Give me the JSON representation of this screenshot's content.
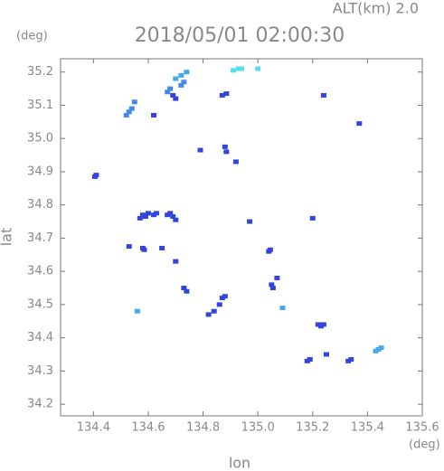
{
  "chart_data": {
    "type": "scatter",
    "title": "2018/05/01 02:00:30",
    "subtitle": "ALT(km)  2.0",
    "x_label": "lon",
    "y_label": "lat",
    "x_unit": "(deg)",
    "y_unit": "(deg)",
    "xlim": [
      134.28,
      135.6
    ],
    "ylim": [
      34.165,
      35.24
    ],
    "xticks": [
      134.4,
      134.6,
      134.8,
      {
        "value": 135,
        "label": "135.0"
      },
      135.2,
      135.4,
      135.6
    ],
    "yticks": [
      34.2,
      34.3,
      34.4,
      34.5,
      34.6,
      34.7,
      34.8,
      34.9,
      {
        "value": 35,
        "label": "35.0"
      },
      35.1,
      35.2
    ],
    "series": [
      {
        "color": "#3344dd",
        "x": [
          134.405,
          134.41,
          134.57,
          134.58,
          134.6,
          134.62,
          134.63,
          134.59,
          134.67,
          134.69,
          134.7,
          134.68,
          134.53,
          134.58,
          134.585,
          134.65,
          134.7,
          134.73,
          134.74,
          134.82,
          134.84,
          134.86,
          134.87,
          134.88,
          134.79,
          134.88,
          134.885,
          134.92,
          134.87,
          134.885,
          134.97,
          135.04,
          135.045,
          135.07,
          135.05,
          135.055,
          135.2,
          135.22,
          135.23,
          135.24,
          135.18,
          135.19,
          135.25,
          135.33,
          135.34,
          135.24,
          135.37,
          134.62,
          134.69,
          134.7
        ],
        "y": [
          34.885,
          34.89,
          34.76,
          34.77,
          34.775,
          34.77,
          34.775,
          34.765,
          34.77,
          34.765,
          34.755,
          34.775,
          34.675,
          34.67,
          34.665,
          34.67,
          34.63,
          34.55,
          34.54,
          34.47,
          34.48,
          34.5,
          34.52,
          34.525,
          34.965,
          34.975,
          34.96,
          34.93,
          35.13,
          35.135,
          34.75,
          34.66,
          34.665,
          34.58,
          34.56,
          34.55,
          34.76,
          34.44,
          34.435,
          34.44,
          34.33,
          34.335,
          34.35,
          34.33,
          34.335,
          35.13,
          35.045,
          35.07,
          35.13,
          35.12
        ]
      },
      {
        "color": "#4488ee",
        "x": [
          134.52,
          134.53,
          134.54,
          134.55,
          134.67,
          134.68,
          134.72,
          134.73
        ],
        "y": [
          35.07,
          35.08,
          35.09,
          35.11,
          35.14,
          35.15,
          35.16,
          35.17
        ]
      },
      {
        "color": "#44aaee",
        "x": [
          134.7,
          134.72,
          134.74,
          135.43,
          135.44,
          135.45,
          134.56,
          135.09
        ],
        "y": [
          35.18,
          35.19,
          35.2,
          34.36,
          34.365,
          34.37,
          34.48,
          34.49
        ]
      },
      {
        "color": "#55ddee",
        "x": [
          134.93,
          134.91,
          135.0,
          134.94
        ],
        "y": [
          35.21,
          35.205,
          35.21,
          35.21
        ]
      }
    ]
  }
}
